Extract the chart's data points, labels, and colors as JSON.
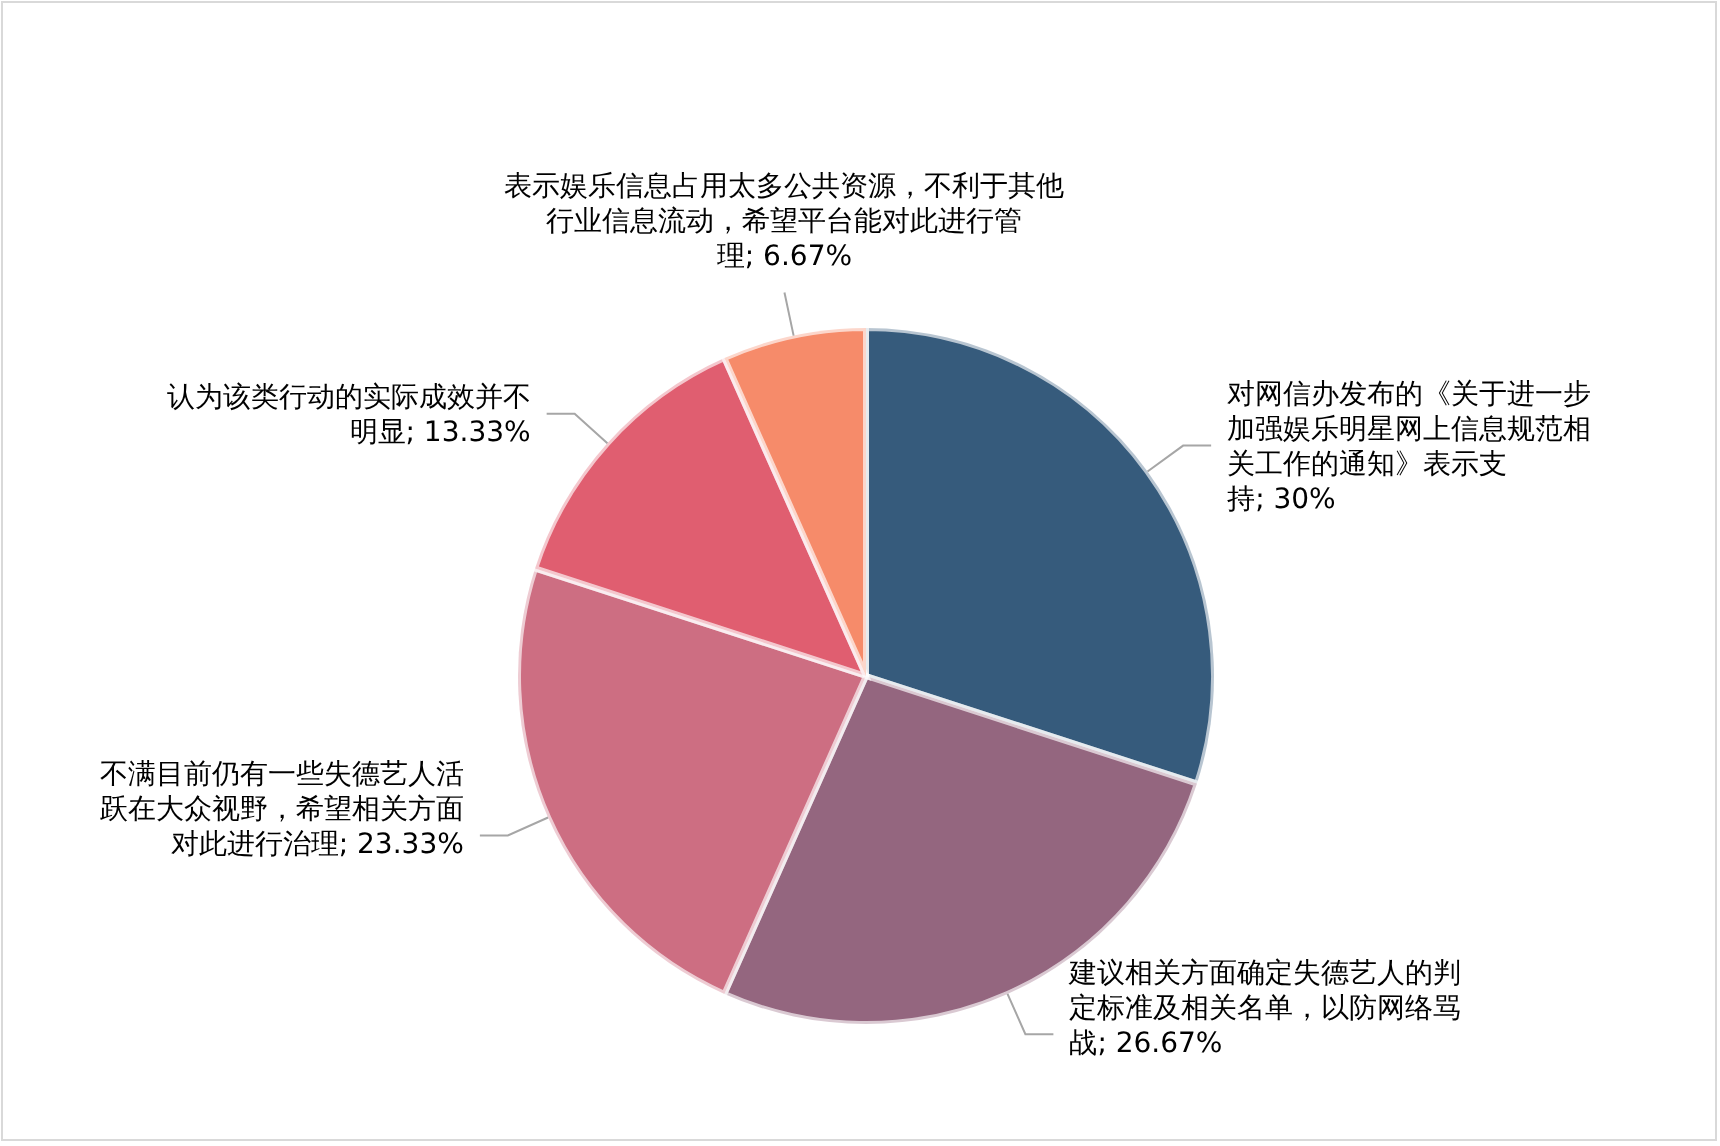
{
  "chart_data": {
    "type": "pie",
    "categories": [
      "对网信办发布的《关于进一步加强娱乐明星网上信息规范相关工作的通知》表示支持",
      "建议相关方面确定失德艺人的判定标准及相关名单，以防网络骂战",
      "不满目前仍有一些失德艺人活跃在大众视野，希望相关方面对此进行治理",
      "认为该类行动的实际成效并不明显",
      "表示娱乐信息占用太多公共资源，不利于其他行业信息流动，希望平台能对此进行管理"
    ],
    "values": [
      30,
      26.67,
      23.33,
      13.33,
      6.67
    ],
    "value_labels": [
      "30%",
      "26.67%",
      "23.33%",
      "13.33%",
      "6.67%"
    ],
    "colors": [
      "#365b7c",
      "#94667f",
      "#cd6e82",
      "#e05e70",
      "#f68b6a"
    ]
  }
}
